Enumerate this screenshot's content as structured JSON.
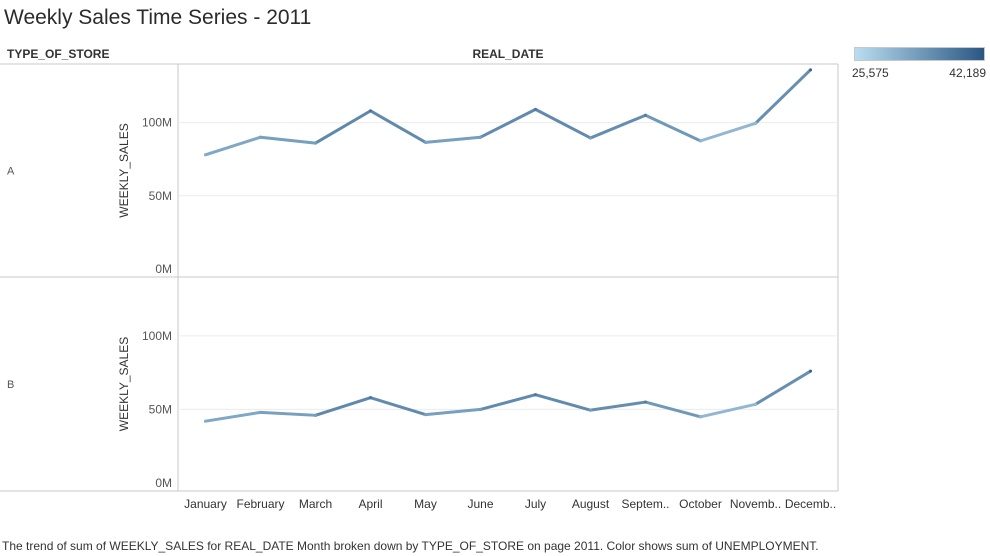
{
  "title": "Weekly Sales Time Series - 2011",
  "headers": {
    "rows": "TYPE_OF_STORE",
    "columns": "REAL_DATE"
  },
  "legend": {
    "min_label": "25,575",
    "max_label": "42,189",
    "min_color": "#b9ddf1",
    "max_color": "#2a5783"
  },
  "caption": "The trend of sum of WEEKLY_SALES for REAL_DATE Month broken down by TYPE_OF_STORE on page 2011.  Color shows sum of UNEMPLOYMENT.",
  "chart_data": {
    "type": "line",
    "x_tick_labels": [
      "January",
      "February",
      "March",
      "April",
      "May",
      "June",
      "July",
      "August",
      "Septem..",
      "October",
      "Novemb..",
      "Decemb.."
    ],
    "ylabel": "WEEKLY_SALES",
    "y_ticks": [
      0,
      50,
      100
    ],
    "y_tick_labels": [
      "0M",
      "50M",
      "100M"
    ],
    "ylim": [
      0,
      140
    ],
    "color_range": [
      25575,
      42189
    ],
    "grid": true,
    "panels": [
      {
        "name": "A",
        "values": [
          78,
          90,
          86,
          108,
          86.5,
          90,
          109,
          89.5,
          105,
          87.5,
          99.5,
          136
        ],
        "color_values": [
          31500,
          33000,
          33500,
          38500,
          33000,
          33500,
          38000,
          33500,
          37500,
          30500,
          30000,
          40500
        ]
      },
      {
        "name": "B",
        "values": [
          42,
          48,
          46,
          58,
          46.5,
          50,
          60,
          49.5,
          55,
          45,
          53.5,
          76
        ],
        "color_values": [
          31500,
          33000,
          33500,
          38500,
          33000,
          33500,
          38000,
          33500,
          37500,
          30500,
          30000,
          40500
        ]
      }
    ]
  }
}
